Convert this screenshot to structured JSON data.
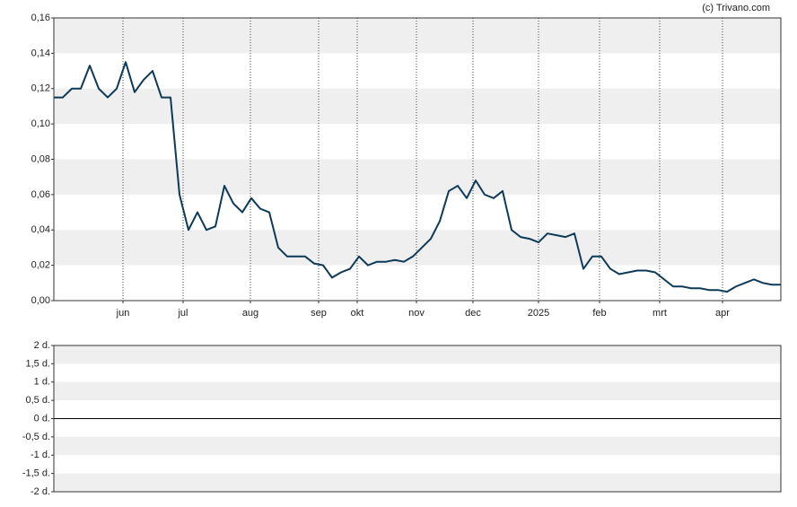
{
  "credit": "(c) Trivano.com",
  "chart_data": [
    {
      "type": "line",
      "series": [
        {
          "color": "#0d3a58",
          "values": [
            0.115,
            0.115,
            0.12,
            0.12,
            0.133,
            0.12,
            0.115,
            0.12,
            0.135,
            0.118,
            0.125,
            0.13,
            0.115,
            0.115,
            0.06,
            0.04,
            0.05,
            0.04,
            0.042,
            0.065,
            0.055,
            0.05,
            0.058,
            0.052,
            0.05,
            0.03,
            0.025,
            0.025,
            0.025,
            0.021,
            0.02,
            0.013,
            0.016,
            0.018,
            0.025,
            0.02,
            0.022,
            0.022,
            0.023,
            0.022,
            0.025,
            0.03,
            0.035,
            0.045,
            0.062,
            0.065,
            0.058,
            0.068,
            0.06,
            0.058,
            0.062,
            0.04,
            0.036,
            0.035,
            0.033,
            0.038,
            0.037,
            0.036,
            0.038,
            0.018,
            0.025,
            0.025,
            0.018,
            0.015,
            0.016,
            0.017,
            0.017,
            0.016,
            0.012,
            0.008,
            0.008,
            0.007,
            0.007,
            0.006,
            0.006,
            0.005,
            0.008,
            0.01,
            0.012,
            0.01,
            0.009,
            0.009
          ]
        }
      ],
      "xlim": [
        0,
        81
      ],
      "xticks": [
        {
          "value": 7.7,
          "label": "jun"
        },
        {
          "value": 14.4,
          "label": "jul"
        },
        {
          "value": 21.9,
          "label": "aug"
        },
        {
          "value": 29.5,
          "label": "sep"
        },
        {
          "value": 33.8,
          "label": "okt"
        },
        {
          "value": 40.4,
          "label": "nov"
        },
        {
          "value": 46.7,
          "label": "dec"
        },
        {
          "value": 54,
          "label": "2025"
        },
        {
          "value": 60.8,
          "label": "feb"
        },
        {
          "value": 67.5,
          "label": "mrt"
        },
        {
          "value": 74.5,
          "label": "apr"
        }
      ],
      "ylim": [
        0,
        0.16
      ],
      "yticks": [
        {
          "value": 0,
          "label": "0,00"
        },
        {
          "value": 0.02,
          "label": "0,02"
        },
        {
          "value": 0.04,
          "label": "0,04"
        },
        {
          "value": 0.06,
          "label": "0,06"
        },
        {
          "value": 0.08,
          "label": "0,08"
        },
        {
          "value": 0.1,
          "label": "0,10"
        },
        {
          "value": 0.12,
          "label": "0,12"
        },
        {
          "value": 0.14,
          "label": "0,14"
        },
        {
          "value": 0.16,
          "label": "0,16"
        }
      ],
      "grid": true
    },
    {
      "type": "bar",
      "ylim": [
        -2,
        2
      ],
      "yticks": [
        {
          "value": -2,
          "label": "-2 d."
        },
        {
          "value": -1.5,
          "label": "-1,5 d."
        },
        {
          "value": -1,
          "label": "-1 d."
        },
        {
          "value": -0.5,
          "label": "-0,5 d."
        },
        {
          "value": 0,
          "label": "0 d."
        },
        {
          "value": 0.5,
          "label": "0,5 d."
        },
        {
          "value": 1,
          "label": "1 d."
        },
        {
          "value": 1.5,
          "label": "1,5 d."
        },
        {
          "value": 2,
          "label": "2 d."
        }
      ],
      "grid": true
    }
  ]
}
